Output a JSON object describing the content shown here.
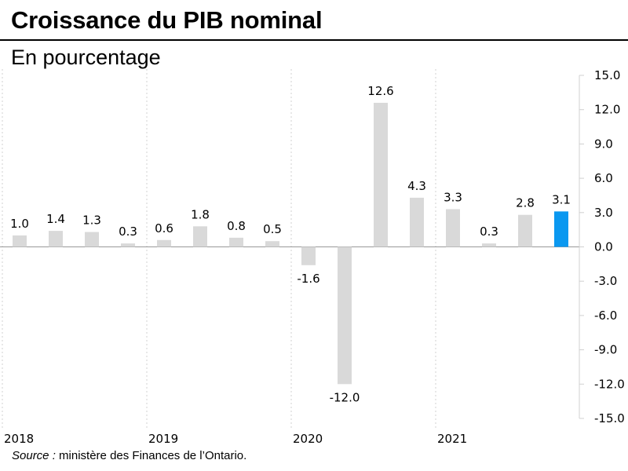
{
  "header": {
    "title": "Croissance du PIB nominal",
    "subtitle": "En pourcentage"
  },
  "footer": {
    "source_label": "Source :",
    "source_text": "ministère des Finances de l’Ontario."
  },
  "colors": {
    "bar": "#d9d9d9",
    "highlight": "#0a98f0",
    "gridline": "#d0d0d0",
    "zero_line": "#999999"
  },
  "chart_data": {
    "type": "bar",
    "title": "Croissance du PIB nominal",
    "subtitle": "En pourcentage",
    "year_labels": [
      "2018",
      "2019",
      "2020",
      "2021"
    ],
    "values": [
      1.0,
      1.4,
      1.3,
      0.3,
      0.6,
      1.8,
      0.8,
      0.5,
      -1.6,
      -12.0,
      12.6,
      4.3,
      3.3,
      0.3,
      2.8,
      3.1
    ],
    "value_labels": [
      "1.0",
      "1.4",
      "1.3",
      "0.3",
      "0.6",
      "1.8",
      "0.8",
      "0.5",
      "-1.6",
      "-12.0",
      "12.6",
      "4.3",
      "3.3",
      "0.3",
      "2.8",
      "3.1"
    ],
    "highlight_index": 15,
    "ylim": [
      -15.0,
      15.0
    ],
    "yticks": [
      15.0,
      12.0,
      9.0,
      6.0,
      3.0,
      0.0,
      -3.0,
      -6.0,
      -9.0,
      -12.0,
      -15.0
    ],
    "ytick_labels": [
      "15.0",
      "12.0",
      "9.0",
      "6.0",
      "3.0",
      "0.0",
      "-3.0",
      "-6.0",
      "-9.0",
      "-12.0",
      "-15.0"
    ],
    "yaxis_position": "right",
    "grid": "vertical dotted lines between years",
    "legend": "none"
  }
}
